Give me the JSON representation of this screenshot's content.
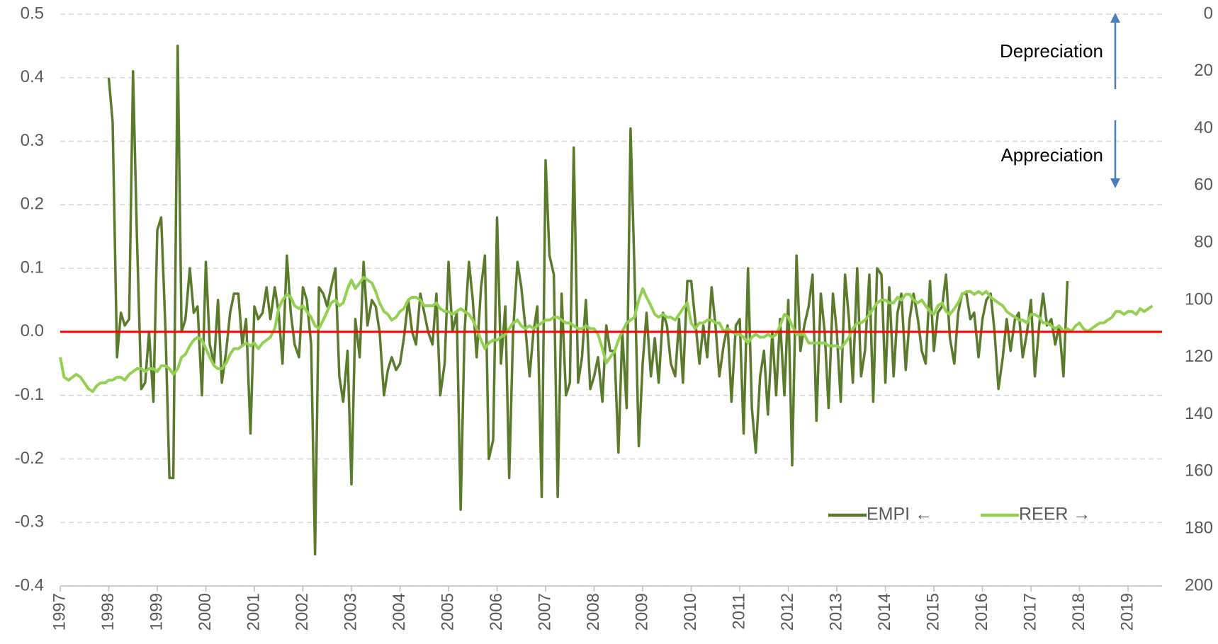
{
  "chart_data": {
    "type": "line",
    "x": [
      1997,
      1997.08,
      1997.17,
      1997.25,
      1997.33,
      1997.42,
      1997.5,
      1997.58,
      1997.67,
      1997.75,
      1997.83,
      1997.92,
      1998,
      1998.08,
      1998.17,
      1998.25,
      1998.33,
      1998.42,
      1998.5,
      1998.58,
      1998.67,
      1998.75,
      1998.83,
      1998.92,
      1999,
      1999.08,
      1999.17,
      1999.25,
      1999.33,
      1999.42,
      1999.5,
      1999.58,
      1999.67,
      1999.75,
      1999.83,
      1999.92,
      2000,
      2000.08,
      2000.17,
      2000.25,
      2000.33,
      2000.42,
      2000.5,
      2000.58,
      2000.67,
      2000.75,
      2000.83,
      2000.92,
      2001,
      2001.08,
      2001.17,
      2001.25,
      2001.33,
      2001.42,
      2001.5,
      2001.58,
      2001.67,
      2001.75,
      2001.83,
      2001.92,
      2002,
      2002.08,
      2002.17,
      2002.25,
      2002.33,
      2002.42,
      2002.5,
      2002.58,
      2002.67,
      2002.75,
      2002.83,
      2002.92,
      2003,
      2003.08,
      2003.17,
      2003.25,
      2003.33,
      2003.42,
      2003.5,
      2003.58,
      2003.67,
      2003.75,
      2003.83,
      2003.92,
      2004,
      2004.08,
      2004.17,
      2004.25,
      2004.33,
      2004.42,
      2004.5,
      2004.58,
      2004.67,
      2004.75,
      2004.83,
      2004.92,
      2005,
      2005.08,
      2005.17,
      2005.25,
      2005.33,
      2005.42,
      2005.5,
      2005.58,
      2005.67,
      2005.75,
      2005.83,
      2005.92,
      2006,
      2006.08,
      2006.17,
      2006.25,
      2006.33,
      2006.42,
      2006.5,
      2006.58,
      2006.67,
      2006.75,
      2006.83,
      2006.92,
      2007,
      2007.08,
      2007.17,
      2007.25,
      2007.33,
      2007.42,
      2007.5,
      2007.58,
      2007.67,
      2007.75,
      2007.83,
      2007.92,
      2008,
      2008.08,
      2008.17,
      2008.25,
      2008.33,
      2008.42,
      2008.5,
      2008.58,
      2008.67,
      2008.75,
      2008.83,
      2008.92,
      2009,
      2009.08,
      2009.17,
      2009.25,
      2009.33,
      2009.42,
      2009.5,
      2009.58,
      2009.67,
      2009.75,
      2009.83,
      2009.92,
      2010,
      2010.08,
      2010.17,
      2010.25,
      2010.33,
      2010.42,
      2010.5,
      2010.58,
      2010.67,
      2010.75,
      2010.83,
      2010.92,
      2011,
      2011.08,
      2011.17,
      2011.25,
      2011.33,
      2011.42,
      2011.5,
      2011.58,
      2011.67,
      2011.75,
      2011.83,
      2011.92,
      2012,
      2012.08,
      2012.17,
      2012.25,
      2012.33,
      2012.42,
      2012.5,
      2012.58,
      2012.67,
      2012.75,
      2012.83,
      2012.92,
      2013,
      2013.08,
      2013.17,
      2013.25,
      2013.33,
      2013.42,
      2013.5,
      2013.58,
      2013.67,
      2013.75,
      2013.83,
      2013.92,
      2014,
      2014.08,
      2014.17,
      2014.25,
      2014.33,
      2014.42,
      2014.5,
      2014.58,
      2014.67,
      2014.75,
      2014.83,
      2014.92,
      2015,
      2015.08,
      2015.17,
      2015.25,
      2015.33,
      2015.42,
      2015.5,
      2015.58,
      2015.67,
      2015.75,
      2015.83,
      2015.92,
      2016,
      2016.08,
      2016.17,
      2016.25,
      2016.33,
      2016.42,
      2016.5,
      2016.58,
      2016.67,
      2016.75,
      2016.83,
      2016.92,
      2017,
      2017.08,
      2017.17,
      2017.25,
      2017.33,
      2017.42,
      2017.5,
      2017.58,
      2017.67,
      2017.75,
      2017.83,
      2017.92,
      2018,
      2018.08,
      2018.17,
      2018.25,
      2018.33,
      2018.42,
      2018.5,
      2018.58,
      2018.67,
      2018.75,
      2018.83,
      2018.92,
      2019,
      2019.08,
      2019.17,
      2019.25,
      2019.33,
      2019.42,
      2019.5
    ],
    "series": [
      {
        "name": "EMPI ←",
        "color": "#5b7b2c",
        "axis": "y",
        "values": [
          null,
          null,
          null,
          null,
          null,
          null,
          null,
          null,
          null,
          null,
          null,
          null,
          0.4,
          0.33,
          -0.04,
          0.03,
          0.01,
          0.02,
          0.41,
          0.15,
          -0.09,
          -0.08,
          0.0,
          -0.11,
          0.16,
          0.18,
          0.0,
          -0.23,
          -0.23,
          0.45,
          0.0,
          0.02,
          0.1,
          0.03,
          0.04,
          -0.1,
          0.11,
          -0.02,
          -0.05,
          0.05,
          -0.08,
          -0.03,
          0.03,
          0.06,
          0.06,
          -0.02,
          0.02,
          -0.16,
          0.04,
          0.02,
          0.03,
          0.07,
          0.02,
          0.07,
          0.03,
          -0.05,
          0.12,
          0.03,
          -0.02,
          -0.04,
          0.07,
          0.05,
          -0.02,
          -0.35,
          0.07,
          0.06,
          0.04,
          0.07,
          0.1,
          -0.07,
          -0.11,
          -0.03,
          -0.24,
          0.02,
          -0.04,
          0.11,
          0.01,
          0.05,
          0.04,
          0.0,
          -0.1,
          -0.06,
          -0.04,
          -0.06,
          -0.05,
          -0.01,
          0.05,
          0.0,
          -0.02,
          0.06,
          0.03,
          0.0,
          -0.02,
          0.06,
          -0.1,
          -0.05,
          0.11,
          0.0,
          0.03,
          -0.28,
          0.0,
          0.11,
          0.05,
          -0.04,
          0.07,
          0.12,
          -0.2,
          -0.17,
          0.18,
          -0.05,
          0.04,
          -0.23,
          0.0,
          0.11,
          0.07,
          0.01,
          -0.07,
          0.0,
          0.04,
          -0.26,
          0.27,
          0.12,
          0.09,
          -0.26,
          0.06,
          -0.1,
          -0.08,
          0.29,
          -0.08,
          -0.04,
          0.05,
          -0.09,
          -0.07,
          -0.04,
          -0.11,
          0.01,
          -0.03,
          -0.03,
          -0.19,
          0.0,
          -0.12,
          0.32,
          0.1,
          -0.18,
          -0.05,
          0.03,
          -0.07,
          -0.01,
          -0.08,
          0.03,
          0.01,
          -0.05,
          -0.07,
          0.02,
          -0.08,
          0.08,
          0.08,
          0.02,
          -0.05,
          0.01,
          -0.04,
          0.07,
          0.01,
          -0.07,
          -0.02,
          0.01,
          -0.11,
          0.01,
          0.02,
          -0.16,
          0.1,
          -0.12,
          -0.19,
          -0.07,
          -0.03,
          -0.13,
          0.0,
          -0.1,
          0.02,
          -0.1,
          0.05,
          -0.21,
          0.12,
          -0.03,
          0.01,
          0.04,
          0.09,
          -0.14,
          0.06,
          0.0,
          -0.12,
          0.06,
          0.0,
          -0.11,
          0.09,
          0.02,
          -0.08,
          0.1,
          -0.07,
          -0.03,
          0.09,
          -0.11,
          0.1,
          0.09,
          -0.08,
          0.07,
          -0.07,
          0.03,
          0.06,
          -0.06,
          0.02,
          0.06,
          0.02,
          -0.03,
          -0.05,
          0.08,
          -0.03,
          0.03,
          0.04,
          0.09,
          -0.01,
          -0.05,
          0.03,
          0.06,
          0.06,
          0.02,
          0.03,
          -0.04,
          0.02,
          0.05,
          0.06,
          0.0,
          -0.09,
          -0.04,
          0.02,
          -0.03,
          0.02,
          0.03,
          -0.04,
          0.0,
          0.05,
          -0.07,
          0.01,
          0.06,
          0.01,
          0.02,
          -0.02,
          0.01,
          -0.07,
          0.08,
          null,
          null,
          null,
          null,
          null,
          null,
          null,
          null,
          null,
          null,
          null,
          null,
          null,
          null,
          null,
          null,
          null,
          null,
          null,
          null,
          null
        ]
      },
      {
        "name": "REER →",
        "color": "#92d050",
        "axis": "y2",
        "values": [
          120,
          127,
          128,
          127,
          126,
          127,
          129,
          131,
          132,
          130,
          129,
          129,
          128,
          128,
          127,
          127,
          128,
          126,
          125,
          124,
          124,
          125,
          124,
          124,
          125,
          123,
          123,
          124,
          126,
          124,
          120,
          119,
          116,
          114,
          113,
          114,
          117,
          120,
          123,
          124,
          124,
          122,
          119,
          117,
          117,
          116,
          115,
          116,
          115,
          117,
          115,
          114,
          113,
          110,
          103,
          100,
          98,
          99,
          102,
          103,
          102,
          104,
          106,
          109,
          110,
          107,
          104,
          101,
          100,
          102,
          101,
          96,
          93,
          96,
          94,
          92,
          93,
          94,
          97,
          101,
          104,
          105,
          107,
          106,
          104,
          103,
          100,
          99,
          99,
          100,
          102,
          102,
          102,
          101,
          103,
          104,
          104,
          105,
          104,
          103,
          104,
          105,
          107,
          110,
          114,
          117,
          115,
          114,
          114,
          113,
          112,
          110,
          108,
          107,
          109,
          110,
          109,
          110,
          109,
          108,
          107,
          107,
          106,
          106,
          107,
          108,
          108,
          109,
          110,
          110,
          109,
          110,
          110,
          112,
          117,
          122,
          120,
          118,
          114,
          111,
          108,
          107,
          106,
          100,
          96,
          99,
          102,
          105,
          106,
          105,
          106,
          106,
          107,
          105,
          103,
          101,
          108,
          110,
          108,
          108,
          107,
          107,
          108,
          108,
          111,
          110,
          111,
          112,
          112,
          113,
          115,
          113,
          112,
          113,
          113,
          112,
          113,
          112,
          109,
          105,
          106,
          109,
          112,
          112,
          112,
          115,
          115,
          115,
          115,
          115,
          116,
          116,
          116,
          117,
          115,
          113,
          110,
          108,
          108,
          107,
          105,
          103,
          101,
          100,
          100,
          101,
          101,
          99,
          100,
          98,
          98,
          100,
          101,
          100,
          102,
          104,
          105,
          102,
          101,
          104,
          105,
          103,
          101,
          98,
          97,
          97,
          98,
          97,
          98,
          97,
          99,
          100,
          101,
          102,
          104,
          105,
          106,
          107,
          107,
          108,
          105,
          105,
          106,
          108,
          108,
          109,
          110,
          109,
          111,
          110,
          111,
          109,
          108,
          110,
          111,
          110,
          109,
          108,
          108,
          107,
          106,
          104,
          104,
          105,
          104,
          104,
          105,
          103,
          104,
          103,
          102
        ]
      }
    ],
    "xlim": [
      1997,
      2019.7
    ],
    "xticks": [
      1997,
      1998,
      1999,
      2000,
      2001,
      2002,
      2003,
      2004,
      2005,
      2006,
      2007,
      2008,
      2009,
      2010,
      2011,
      2012,
      2013,
      2014,
      2015,
      2016,
      2017,
      2018,
      2019
    ],
    "ylim": [
      -0.4,
      0.5
    ],
    "yticks": [
      -0.4,
      -0.3,
      -0.2,
      -0.1,
      {
        "value": 0,
        "label": "0.0"
      },
      0.1,
      0.2,
      0.3,
      0.4,
      0.5
    ],
    "y2lim": [
      0,
      200
    ],
    "y2_reversed": true,
    "y2ticks": [
      0,
      20,
      40,
      60,
      80,
      100,
      120,
      140,
      160,
      180,
      200
    ],
    "grid": true,
    "reference_line": {
      "y": 0,
      "color": "#ff0000"
    },
    "legend_position": "lower right",
    "annotations": [
      "Depreciation",
      "Appreciation"
    ]
  }
}
